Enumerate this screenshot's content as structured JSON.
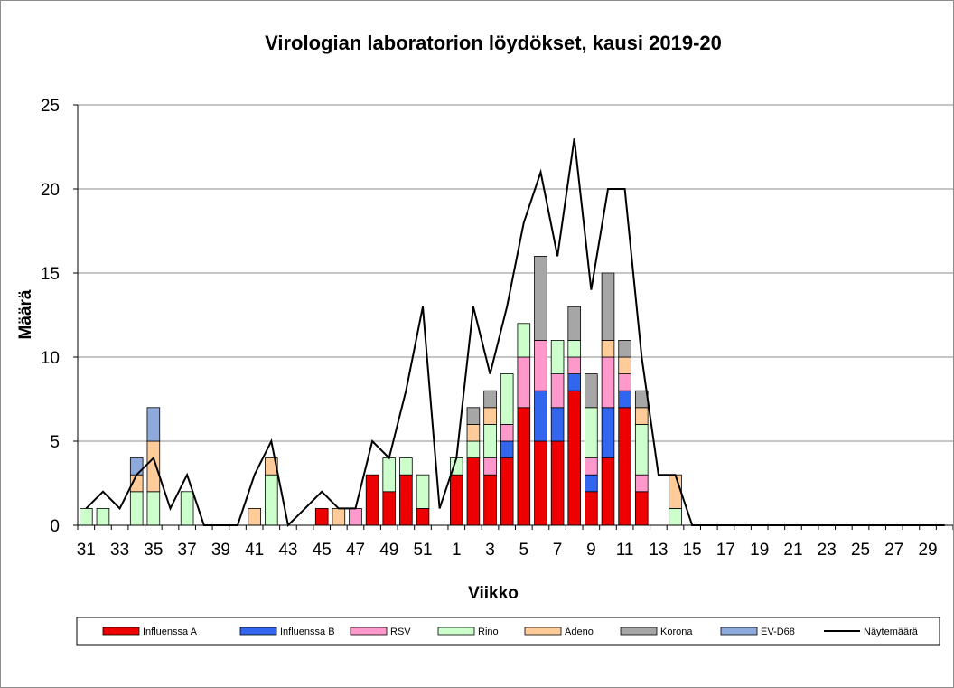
{
  "chart_data": {
    "type": "bar",
    "stacked": true,
    "title": "Virologian laboratorion löydökset, kausi 2019-20",
    "xlabel": "Viikko",
    "ylabel": "Määrä",
    "ylim": [
      0,
      25
    ],
    "yticks": [
      0,
      5,
      10,
      15,
      20,
      25
    ],
    "grid": true,
    "legend_position": "bottom",
    "categories": [
      "31",
      "32",
      "33",
      "34",
      "35",
      "36",
      "37",
      "38",
      "39",
      "40",
      "41",
      "42",
      "43",
      "44",
      "45",
      "46",
      "47",
      "48",
      "49",
      "50",
      "51",
      "52",
      "1",
      "2",
      "3",
      "4",
      "5",
      "6",
      "7",
      "8",
      "9",
      "10",
      "11",
      "12",
      "13",
      "14",
      "15",
      "16",
      "17",
      "18",
      "19",
      "20",
      "21",
      "22",
      "23",
      "24",
      "25",
      "26",
      "27",
      "28",
      "29",
      "30"
    ],
    "tick_labels": [
      "31",
      "33",
      "35",
      "37",
      "39",
      "41",
      "43",
      "45",
      "47",
      "49",
      "51",
      "1",
      "3",
      "5",
      "7",
      "9",
      "11",
      "13",
      "15",
      "17",
      "19",
      "21",
      "23",
      "25",
      "27",
      "29"
    ],
    "series": [
      {
        "name": "Influenssa A",
        "color": "#ee0000",
        "kind": "bar",
        "values": [
          0,
          0,
          0,
          0,
          0,
          0,
          0,
          0,
          0,
          0,
          0,
          0,
          0,
          0,
          1,
          0,
          0,
          3,
          2,
          3,
          1,
          0,
          3,
          4,
          3,
          4,
          7,
          5,
          5,
          8,
          2,
          4,
          7,
          2,
          0,
          0,
          0,
          0,
          0,
          0,
          0,
          0,
          0,
          0,
          0,
          0,
          0,
          0,
          0,
          0,
          0,
          0
        ]
      },
      {
        "name": "Influenssa B",
        "color": "#3366ee",
        "kind": "bar",
        "values": [
          0,
          0,
          0,
          0,
          0,
          0,
          0,
          0,
          0,
          0,
          0,
          0,
          0,
          0,
          0,
          0,
          0,
          0,
          0,
          0,
          0,
          0,
          0,
          0,
          0,
          1,
          0,
          3,
          2,
          1,
          1,
          3,
          1,
          0,
          0,
          0,
          0,
          0,
          0,
          0,
          0,
          0,
          0,
          0,
          0,
          0,
          0,
          0,
          0,
          0,
          0,
          0
        ]
      },
      {
        "name": "RSV",
        "color": "#ff99cc",
        "kind": "bar",
        "values": [
          0,
          0,
          0,
          0,
          0,
          0,
          0,
          0,
          0,
          0,
          0,
          0,
          0,
          0,
          0,
          0,
          1,
          0,
          0,
          0,
          0,
          0,
          0,
          0,
          1,
          1,
          3,
          3,
          2,
          1,
          1,
          3,
          1,
          1,
          0,
          0,
          0,
          0,
          0,
          0,
          0,
          0,
          0,
          0,
          0,
          0,
          0,
          0,
          0,
          0,
          0,
          0
        ]
      },
      {
        "name": "Rino",
        "color": "#ccffcc",
        "kind": "bar",
        "values": [
          1,
          1,
          0,
          2,
          2,
          0,
          2,
          0,
          0,
          0,
          0,
          3,
          0,
          0,
          0,
          0,
          0,
          0,
          2,
          1,
          2,
          0,
          1,
          1,
          2,
          3,
          2,
          0,
          2,
          1,
          3,
          0,
          0,
          3,
          0,
          1,
          0,
          0,
          0,
          0,
          0,
          0,
          0,
          0,
          0,
          0,
          0,
          0,
          0,
          0,
          0,
          0
        ]
      },
      {
        "name": "Adeno",
        "color": "#ffcc99",
        "kind": "bar",
        "values": [
          0,
          0,
          0,
          1,
          3,
          0,
          0,
          0,
          0,
          0,
          1,
          1,
          0,
          0,
          0,
          1,
          0,
          0,
          0,
          0,
          0,
          0,
          0,
          1,
          1,
          0,
          0,
          0,
          0,
          0,
          0,
          1,
          1,
          1,
          0,
          2,
          0,
          0,
          0,
          0,
          0,
          0,
          0,
          0,
          0,
          0,
          0,
          0,
          0,
          0,
          0,
          0
        ]
      },
      {
        "name": "Korona",
        "color": "#a6a6a6",
        "kind": "bar",
        "values": [
          0,
          0,
          0,
          0,
          0,
          0,
          0,
          0,
          0,
          0,
          0,
          0,
          0,
          0,
          0,
          0,
          0,
          0,
          0,
          0,
          0,
          0,
          0,
          1,
          1,
          0,
          0,
          5,
          0,
          2,
          2,
          4,
          1,
          1,
          0,
          0,
          0,
          0,
          0,
          0,
          0,
          0,
          0,
          0,
          0,
          0,
          0,
          0,
          0,
          0,
          0,
          0
        ]
      },
      {
        "name": "EV-D68",
        "color": "#8ea9db",
        "kind": "bar",
        "values": [
          0,
          0,
          0,
          1,
          2,
          0,
          0,
          0,
          0,
          0,
          0,
          0,
          0,
          0,
          0,
          0,
          0,
          0,
          0,
          0,
          0,
          0,
          0,
          0,
          0,
          0,
          0,
          0,
          0,
          0,
          0,
          0,
          0,
          0,
          0,
          0,
          0,
          0,
          0,
          0,
          0,
          0,
          0,
          0,
          0,
          0,
          0,
          0,
          0,
          0,
          0,
          0
        ]
      },
      {
        "name": "Näytemäärä",
        "color": "#000000",
        "kind": "line",
        "values": [
          1,
          2,
          1,
          3,
          4,
          1,
          3,
          0,
          0,
          0,
          3,
          5,
          0,
          1,
          2,
          1,
          1,
          5,
          4,
          8,
          13,
          1,
          4,
          13,
          9,
          13,
          18,
          21,
          16,
          23,
          14,
          20,
          20,
          10,
          3,
          3,
          0,
          0,
          0,
          0,
          0,
          0,
          0,
          0,
          0,
          0,
          0,
          0,
          0,
          0,
          0,
          0
        ]
      }
    ]
  }
}
